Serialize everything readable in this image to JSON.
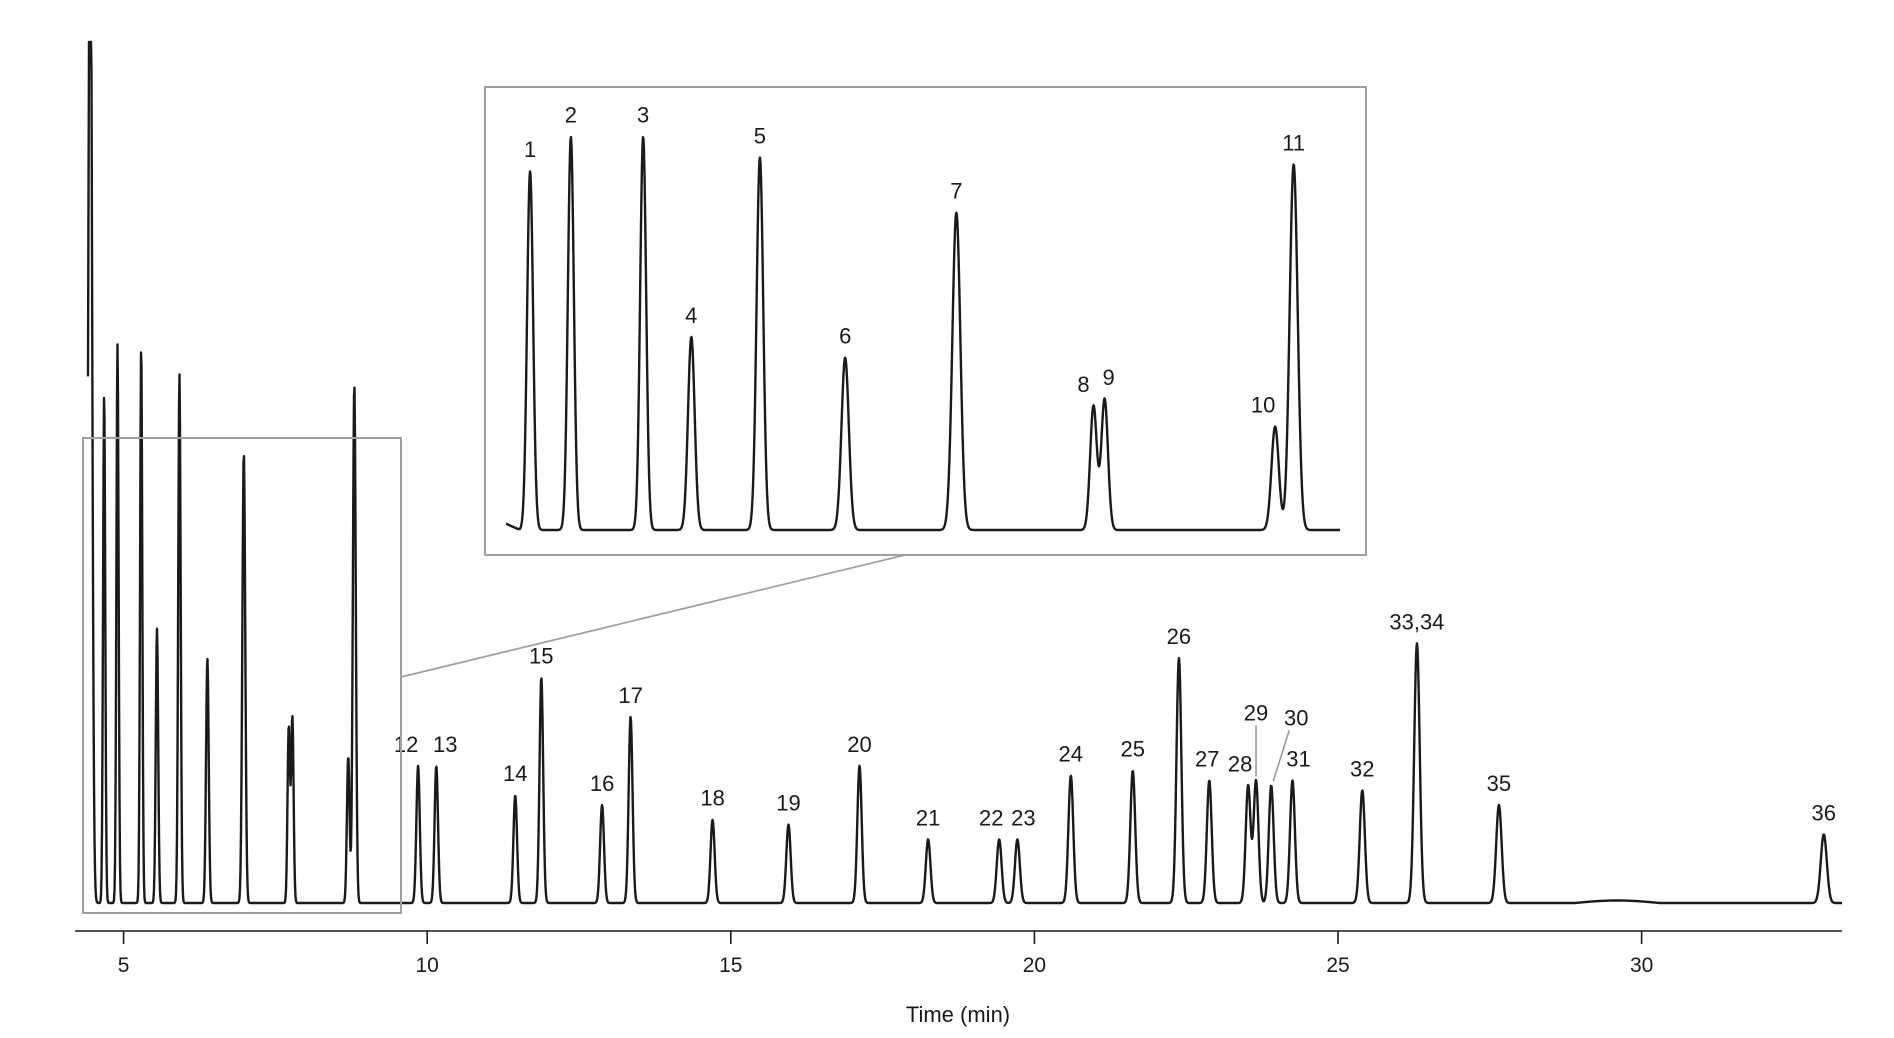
{
  "chart_data": {
    "type": "line",
    "title": "",
    "xlabel": "Time (min)",
    "ylabel": "",
    "xlim": [
      4.2,
      33.3
    ],
    "x_ticks": [
      "5",
      "10",
      "15",
      "20",
      "25",
      "30"
    ],
    "x_tick_values": [
      5,
      10,
      15,
      20,
      25,
      30
    ],
    "grid": false,
    "legend": "none",
    "series": [
      {
        "name": "",
        "peaks": [
          {
            "label": "",
            "t": 4.45,
            "h": 1.1,
            "w": 0.03
          },
          {
            "label": "1",
            "t": 4.68,
            "h": 0.52,
            "w": 0.018
          },
          {
            "label": "2",
            "t": 4.9,
            "h": 0.57,
            "w": 0.018
          },
          {
            "label": "3",
            "t": 5.29,
            "h": 0.57,
            "w": 0.018
          },
          {
            "label": "4",
            "t": 5.55,
            "h": 0.28,
            "w": 0.02
          },
          {
            "label": "5",
            "t": 5.92,
            "h": 0.54,
            "w": 0.02
          },
          {
            "label": "6",
            "t": 6.38,
            "h": 0.25,
            "w": 0.022
          },
          {
            "label": "7",
            "t": 6.98,
            "h": 0.46,
            "w": 0.024
          },
          {
            "label": "8",
            "t": 7.72,
            "h": 0.18,
            "w": 0.02
          },
          {
            "label": "9",
            "t": 7.78,
            "h": 0.19,
            "w": 0.02
          },
          {
            "label": "10",
            "t": 8.7,
            "h": 0.15,
            "w": 0.022
          },
          {
            "label": "11",
            "t": 8.8,
            "h": 0.53,
            "w": 0.024
          },
          {
            "label": "12",
            "t": 9.85,
            "h": 0.14,
            "w": 0.028
          },
          {
            "label": "13",
            "t": 10.15,
            "h": 0.14,
            "w": 0.028
          },
          {
            "label": "14",
            "t": 11.45,
            "h": 0.11,
            "w": 0.03
          },
          {
            "label": "15",
            "t": 11.88,
            "h": 0.23,
            "w": 0.03
          },
          {
            "label": "16",
            "t": 12.88,
            "h": 0.1,
            "w": 0.032
          },
          {
            "label": "17",
            "t": 13.35,
            "h": 0.19,
            "w": 0.032
          },
          {
            "label": "18",
            "t": 14.7,
            "h": 0.085,
            "w": 0.034
          },
          {
            "label": "19",
            "t": 15.95,
            "h": 0.08,
            "w": 0.036
          },
          {
            "label": "20",
            "t": 17.12,
            "h": 0.14,
            "w": 0.036
          },
          {
            "label": "21",
            "t": 18.25,
            "h": 0.065,
            "w": 0.038
          },
          {
            "label": "22",
            "t": 19.42,
            "h": 0.065,
            "w": 0.04
          },
          {
            "label": "23",
            "t": 19.72,
            "h": 0.065,
            "w": 0.04
          },
          {
            "label": "24",
            "t": 20.6,
            "h": 0.13,
            "w": 0.04
          },
          {
            "label": "25",
            "t": 21.62,
            "h": 0.135,
            "w": 0.04
          },
          {
            "label": "26",
            "t": 22.38,
            "h": 0.25,
            "w": 0.04
          },
          {
            "label": "27",
            "t": 22.88,
            "h": 0.125,
            "w": 0.04
          },
          {
            "label": "28",
            "t": 23.52,
            "h": 0.12,
            "w": 0.04
          },
          {
            "label": "29",
            "t": 23.65,
            "h": 0.125,
            "w": 0.04
          },
          {
            "label": "30",
            "t": 23.9,
            "h": 0.12,
            "w": 0.04
          },
          {
            "label": "31",
            "t": 24.25,
            "h": 0.125,
            "w": 0.04
          },
          {
            "label": "32",
            "t": 25.4,
            "h": 0.115,
            "w": 0.042
          },
          {
            "label": "33,34",
            "t": 26.3,
            "h": 0.265,
            "w": 0.045
          },
          {
            "label": "35",
            "t": 27.65,
            "h": 0.1,
            "w": 0.045
          },
          {
            "label": "36",
            "t": 33.0,
            "h": 0.07,
            "w": 0.05
          }
        ]
      }
    ],
    "inset": {
      "x_range": [
        4.55,
        9.05
      ],
      "peak_labels": [
        "1",
        "2",
        "3",
        "4",
        "5",
        "6",
        "7",
        "8",
        "9",
        "10",
        "11"
      ]
    }
  }
}
